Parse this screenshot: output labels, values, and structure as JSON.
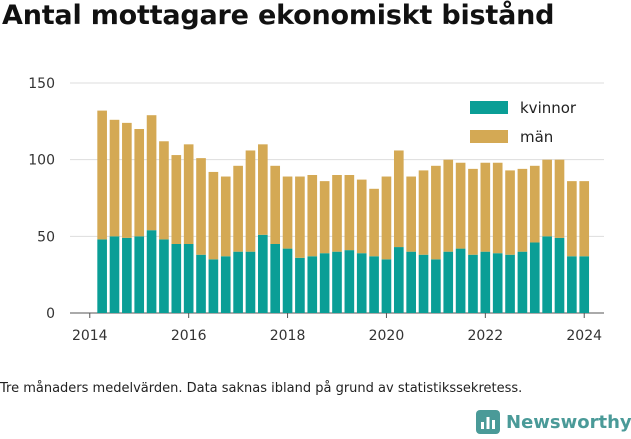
{
  "title": "Antal mottagare ekonomiskt bistånd",
  "caption": "Tre månaders medelvärden. Data saknas ibland på grund av statistikssekretess.",
  "brand": {
    "name": "Newsworthy",
    "icon": "bar-chart-logo-icon"
  },
  "colors": {
    "kvinnor": "#0a9e96",
    "man": "#d4a954",
    "axis": "#555555",
    "grid": "#dddddd"
  },
  "chart_data": {
    "type": "bar",
    "stacked": true,
    "title": "Antal mottagare ekonomiskt bistånd",
    "xlabel": "",
    "ylabel": "",
    "ylim": [
      0,
      150
    ],
    "yticks": [
      "0",
      "50",
      "100",
      "150"
    ],
    "xlim": [
      2013.6,
      2024.4
    ],
    "xticks": [
      "2014",
      "2016",
      "2018",
      "2020",
      "2022",
      "2024"
    ],
    "legend": "top-right",
    "x": [
      2014.25,
      2014.5,
      2014.75,
      2015.0,
      2015.25,
      2015.5,
      2015.75,
      2016.0,
      2016.25,
      2016.5,
      2016.75,
      2017.0,
      2017.25,
      2017.5,
      2017.75,
      2018.0,
      2018.25,
      2018.5,
      2018.75,
      2019.0,
      2019.25,
      2019.5,
      2019.75,
      2020.0,
      2020.25,
      2020.5,
      2020.75,
      2021.0,
      2021.25,
      2021.5,
      2021.75,
      2022.0,
      2022.25,
      2022.5,
      2022.75,
      2023.0,
      2023.25,
      2023.5,
      2023.75,
      2024.0
    ],
    "series": [
      {
        "name": "kvinnor",
        "values": [
          48,
          50,
          49,
          50,
          54,
          48,
          45,
          45,
          38,
          35,
          37,
          40,
          40,
          51,
          45,
          42,
          36,
          37,
          39,
          40,
          41,
          39,
          37,
          35,
          43,
          40,
          38,
          35,
          40,
          42,
          38,
          40,
          39,
          38,
          40,
          46,
          50,
          49,
          37,
          37
        ]
      },
      {
        "name": "män",
        "values": [
          84,
          76,
          75,
          70,
          75,
          64,
          58,
          65,
          63,
          57,
          52,
          56,
          66,
          59,
          51,
          47,
          53,
          53,
          47,
          50,
          49,
          48,
          44,
          54,
          63,
          49,
          55,
          61,
          60,
          56,
          56,
          58,
          59,
          55,
          54,
          50,
          50,
          51,
          49,
          49
        ]
      }
    ]
  }
}
